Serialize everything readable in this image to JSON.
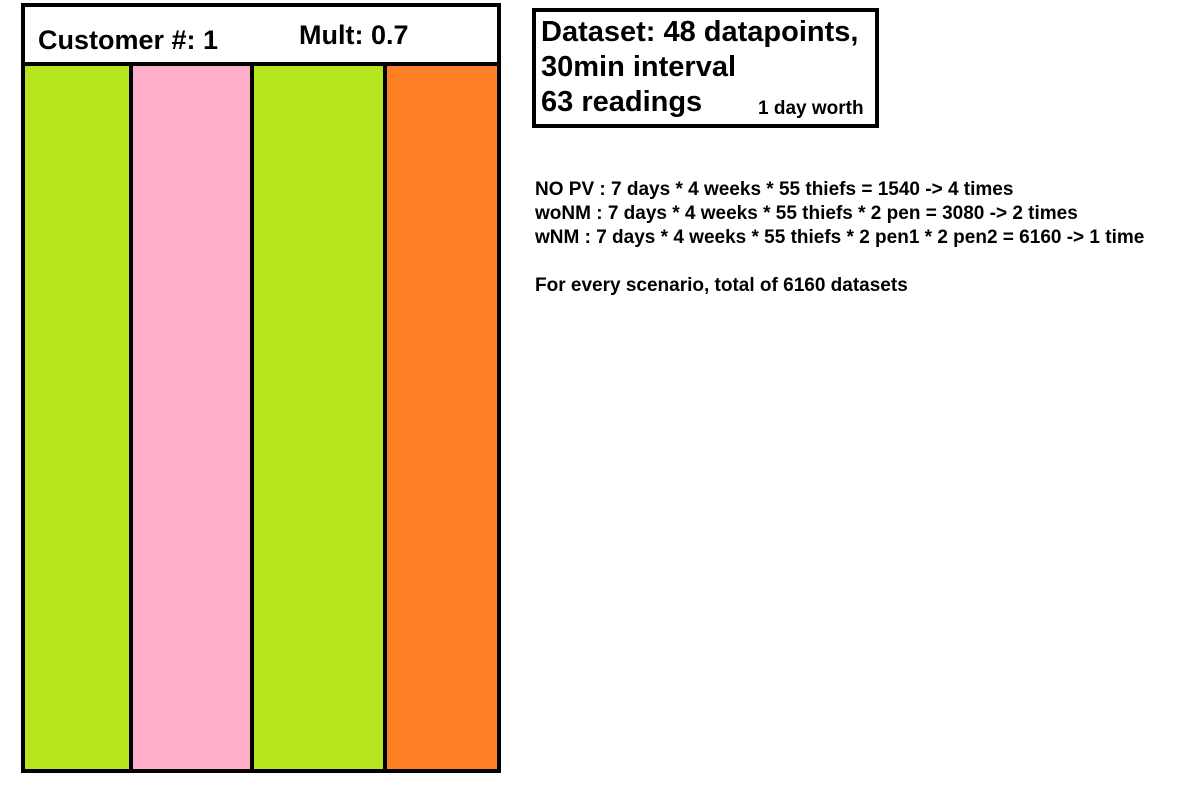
{
  "customer_panel": {
    "customer_label": "Customer #: 1",
    "mult_label": "Mult: 0.7",
    "bars": [
      {
        "color": "#b5e61d"
      },
      {
        "color": "#ffaec9"
      },
      {
        "color": "#b5e61d"
      },
      {
        "color": "#ff7f27"
      }
    ]
  },
  "dataset_box": {
    "line1": "Dataset: 48 datapoints,",
    "line2": "30min interval",
    "line3": "63 readings",
    "note": "1 day worth"
  },
  "notes": {
    "lines": [
      "NO PV : 7 days * 4 weeks * 55 thiefs = 1540 -> 4 times",
      "woNM : 7 days * 4 weeks * 55 thiefs * 2 pen = 3080 -> 2 times",
      "wNM : 7 days * 4 weeks * 55 thiefs * 2 pen1 * 2 pen2 = 6160 -> 1 time"
    ],
    "summary": "For every scenario, total of 6160 datasets"
  }
}
